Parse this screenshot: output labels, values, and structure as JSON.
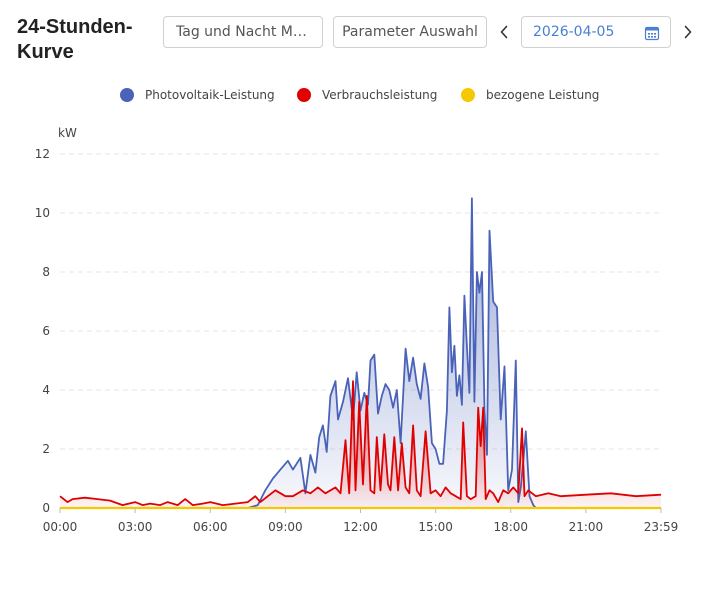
{
  "header": {
    "title": "24-Stunden-Kurve",
    "mode_button": "Tag und Nacht Mo…",
    "param_button": "Parameter Auswahl",
    "date": "2026-04-05",
    "icons": {
      "prev": "chevron-left-icon",
      "next": "chevron-right-icon",
      "calendar": "calendar-icon"
    }
  },
  "chart_data": {
    "type": "line",
    "ylabel": "kW",
    "ylim": [
      0,
      12
    ],
    "yticks": [
      0,
      2,
      4,
      6,
      8,
      10,
      12
    ],
    "xticks": [
      "00:00",
      "03:00",
      "06:00",
      "09:00",
      "12:00",
      "15:00",
      "18:00",
      "21:00",
      "23:59"
    ],
    "xlim_hours": [
      0,
      24
    ],
    "grid": "horizontal-dashed",
    "legend_position": "top-center",
    "series": [
      {
        "name": "Photovoltaik-Leistung",
        "color": "#4a63b8",
        "fill": true,
        "x": [
          0,
          7.5,
          7.9,
          8.2,
          8.5,
          8.8,
          9.1,
          9.3,
          9.6,
          9.8,
          10.0,
          10.2,
          10.35,
          10.5,
          10.65,
          10.8,
          11.0,
          11.1,
          11.3,
          11.5,
          11.7,
          11.85,
          12.0,
          12.15,
          12.3,
          12.4,
          12.55,
          12.7,
          12.85,
          13.0,
          13.15,
          13.3,
          13.45,
          13.6,
          13.8,
          13.95,
          14.1,
          14.25,
          14.4,
          14.55,
          14.7,
          14.85,
          15.0,
          15.15,
          15.3,
          15.45,
          15.55,
          15.65,
          15.75,
          15.85,
          15.95,
          16.05,
          16.15,
          16.25,
          16.35,
          16.45,
          16.55,
          16.65,
          16.75,
          16.85,
          16.95,
          17.05,
          17.15,
          17.3,
          17.45,
          17.6,
          17.75,
          17.9,
          18.05,
          18.2,
          18.3,
          18.4,
          18.5,
          18.6,
          18.75,
          18.9,
          19.0,
          19.1,
          19.3,
          19.6,
          24
        ],
        "y": [
          0,
          0,
          0.1,
          0.6,
          1.0,
          1.3,
          1.6,
          1.3,
          1.7,
          0.5,
          1.8,
          1.2,
          2.4,
          2.8,
          1.9,
          3.8,
          4.3,
          3.0,
          3.6,
          4.4,
          3.0,
          4.6,
          3.3,
          3.9,
          3.5,
          5.0,
          5.2,
          3.2,
          3.8,
          4.2,
          4.0,
          3.4,
          4.0,
          2.2,
          5.4,
          4.3,
          5.1,
          4.2,
          3.7,
          4.9,
          4.1,
          2.2,
          2.0,
          1.5,
          1.5,
          3.3,
          6.8,
          4.6,
          5.5,
          3.8,
          4.5,
          3.5,
          7.2,
          5.5,
          3.9,
          10.5,
          3.6,
          8.0,
          7.3,
          8.0,
          3.3,
          1.8,
          9.4,
          7.0,
          6.8,
          3.0,
          4.8,
          0.6,
          1.3,
          5.0,
          0.2,
          0.7,
          1.6,
          2.6,
          0.4,
          0.1,
          0,
          0,
          0,
          0,
          0
        ]
      },
      {
        "name": "Verbrauchsleistung",
        "color": "#e00000",
        "fill": true,
        "x": [
          0,
          0.3,
          0.5,
          1.0,
          1.5,
          2.0,
          2.5,
          3.0,
          3.3,
          3.6,
          4.0,
          4.3,
          4.7,
          5.0,
          5.3,
          5.7,
          6.0,
          6.5,
          7.0,
          7.5,
          7.8,
          8.0,
          8.3,
          8.6,
          9.0,
          9.3,
          9.7,
          10.0,
          10.3,
          10.6,
          11.0,
          11.2,
          11.4,
          11.55,
          11.7,
          11.8,
          11.95,
          12.1,
          12.25,
          12.4,
          12.55,
          12.65,
          12.8,
          12.95,
          13.1,
          13.2,
          13.35,
          13.5,
          13.65,
          13.8,
          13.95,
          14.1,
          14.25,
          14.4,
          14.6,
          14.8,
          15.0,
          15.2,
          15.4,
          15.6,
          15.8,
          16.0,
          16.1,
          16.25,
          16.4,
          16.6,
          16.7,
          16.8,
          16.9,
          17.0,
          17.15,
          17.3,
          17.5,
          17.7,
          17.9,
          18.1,
          18.3,
          18.45,
          18.55,
          18.7,
          19.0,
          19.5,
          20.0,
          21.0,
          22.0,
          23.0,
          24.0
        ],
        "y": [
          0.4,
          0.2,
          0.3,
          0.35,
          0.3,
          0.25,
          0.1,
          0.2,
          0.1,
          0.15,
          0.1,
          0.2,
          0.1,
          0.3,
          0.1,
          0.15,
          0.2,
          0.1,
          0.15,
          0.2,
          0.4,
          0.2,
          0.4,
          0.6,
          0.4,
          0.4,
          0.6,
          0.5,
          0.7,
          0.5,
          0.7,
          0.5,
          2.3,
          0.5,
          4.3,
          0.6,
          3.6,
          0.8,
          3.8,
          0.6,
          0.5,
          2.4,
          0.6,
          2.5,
          0.8,
          0.6,
          2.4,
          0.6,
          2.2,
          0.7,
          0.5,
          2.8,
          0.6,
          0.4,
          2.6,
          0.5,
          0.6,
          0.4,
          0.7,
          0.5,
          0.4,
          0.3,
          2.9,
          0.4,
          0.3,
          0.4,
          3.4,
          2.1,
          3.4,
          0.3,
          0.6,
          0.5,
          0.2,
          0.6,
          0.5,
          0.7,
          0.5,
          2.7,
          0.4,
          0.6,
          0.4,
          0.5,
          0.4,
          0.45,
          0.5,
          0.4,
          0.45
        ]
      },
      {
        "name": "bezogene Leistung",
        "color": "#f5c800",
        "fill": false,
        "x": [
          0,
          24
        ],
        "y": [
          0,
          0
        ]
      }
    ]
  }
}
